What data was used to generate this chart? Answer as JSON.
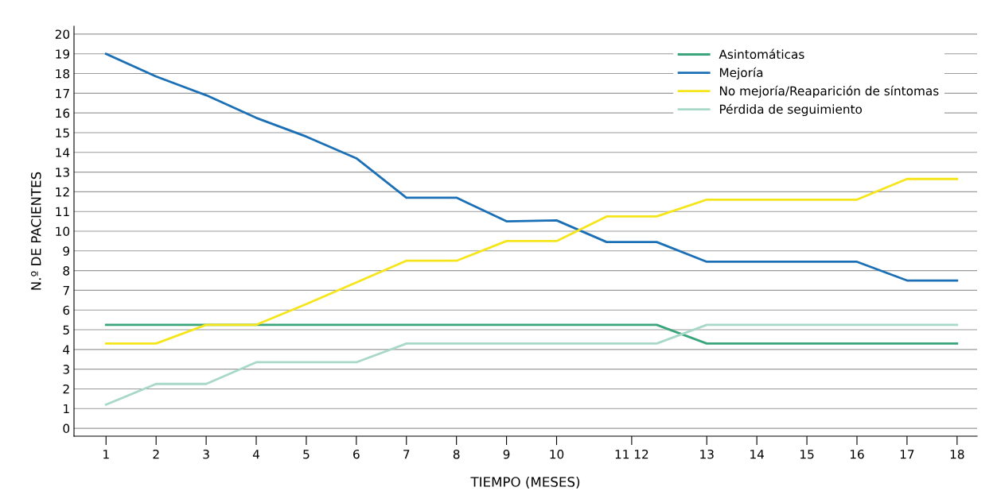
{
  "chart_data": {
    "type": "line",
    "xlabel": "TIEMPO (MESES)",
    "ylabel": "N.º DE PACIENTES",
    "x": [
      1,
      2,
      3,
      4,
      5,
      6,
      7,
      8,
      9,
      10,
      11,
      12,
      13,
      14,
      15,
      16,
      17,
      18
    ],
    "series": [
      {
        "name": "Asintomáticas",
        "color": "#3aa57a",
        "values": [
          5.25,
          5.25,
          5.25,
          5.25,
          5.25,
          5.25,
          5.25,
          5.25,
          5.25,
          5.25,
          5.25,
          5.25,
          4.3,
          4.3,
          4.3,
          4.3,
          4.3,
          4.3
        ]
      },
      {
        "name": "Mejoría",
        "color": "#1a6fb5",
        "values": [
          19,
          17.85,
          16.9,
          15.75,
          14.8,
          13.7,
          11.7,
          11.7,
          10.5,
          10.55,
          9.45,
          9.45,
          8.45,
          8.45,
          8.45,
          8.45,
          7.5,
          7.5
        ]
      },
      {
        "name": "No mejoría/Reaparición de síntomas",
        "color": "#f5e51a",
        "values": [
          4.3,
          4.3,
          5.25,
          5.25,
          6.3,
          7.4,
          8.5,
          8.5,
          9.5,
          9.5,
          10.75,
          10.75,
          11.6,
          11.6,
          11.6,
          11.6,
          12.65,
          12.65
        ]
      },
      {
        "name": "Pérdida de seguimiento",
        "color": "#a8d8c8",
        "values": [
          1.2,
          2.25,
          2.25,
          3.35,
          3.35,
          3.35,
          4.3,
          4.3,
          4.3,
          4.3,
          4.3,
          4.3,
          5.25,
          5.25,
          5.25,
          5.25,
          5.25,
          5.25
        ]
      }
    ],
    "xlim": [
      0.36,
      18.4
    ],
    "ylim": [
      -0.4,
      20.4
    ],
    "xticks": [
      1,
      2,
      3,
      4,
      5,
      6,
      7,
      8,
      9,
      10,
      {
        "value": 11.5,
        "label": "11 12"
      },
      13,
      14,
      15,
      16,
      17,
      18
    ],
    "yticks": [
      0,
      1,
      2,
      3,
      4,
      5,
      6,
      7,
      8,
      9,
      10,
      11,
      12,
      13,
      14,
      15,
      16,
      17,
      18,
      19,
      20
    ],
    "grid": "y",
    "legend": "top right",
    "marker": "none",
    "line_style": "solid"
  }
}
